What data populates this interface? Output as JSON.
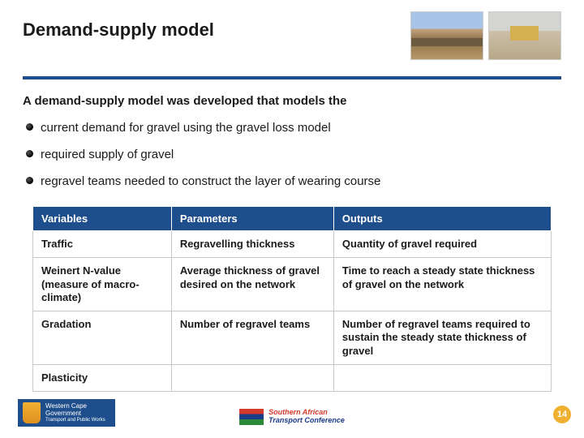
{
  "title": "Demand-supply model",
  "intro": "A demand-supply model was developed that models the",
  "bullets": [
    "current demand for gravel using the gravel loss model",
    "required supply of gravel",
    "regravel teams needed to construct the layer of wearing course"
  ],
  "table": {
    "headers": [
      "Variables",
      "Parameters",
      "Outputs"
    ],
    "rows": [
      [
        "Traffic",
        "Regravelling thickness",
        "Quantity of gravel required"
      ],
      [
        "Weinert N-value (measure of macro-climate)",
        "Average thickness of gravel desired on the network",
        "Time to reach a steady state thickness of gravel on the network"
      ],
      [
        "Gradation",
        "Number of regravel teams",
        "Number of regravel teams required to sustain the steady state thickness of gravel"
      ],
      [
        "Plasticity",
        "",
        ""
      ]
    ],
    "header_bg": "#1f4e8c",
    "header_color": "#ffffff",
    "cell_border": "#c8c8c8",
    "font_size": 13
  },
  "colors": {
    "accent": "#1f4e8c",
    "page_badge_bg": "#f0b030",
    "page_badge_color": "#ffffff"
  },
  "footer": {
    "left_logo": {
      "line1": "Western Cape",
      "line2": "Government",
      "line3": "Transport and Public Works"
    },
    "center_logo": {
      "line1": "Southern African",
      "line2": "Transport Conference"
    },
    "page_number": "14"
  }
}
